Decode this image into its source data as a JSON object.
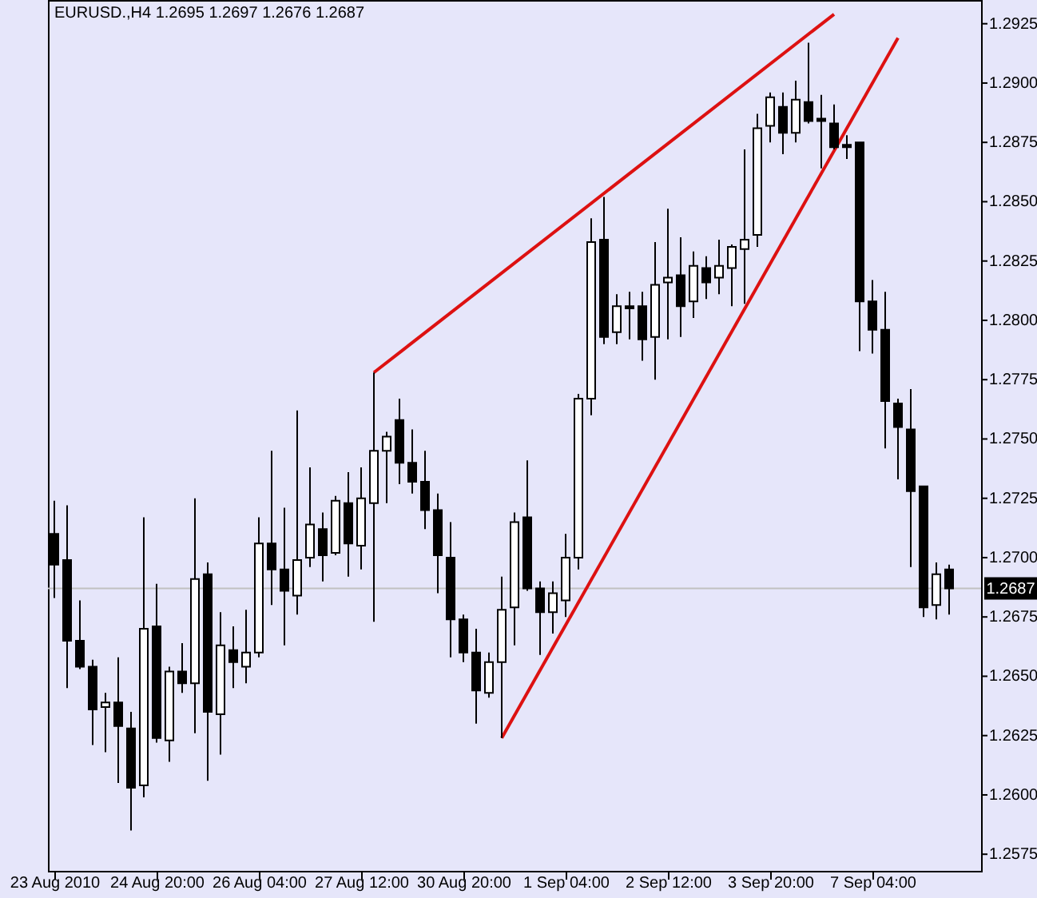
{
  "chart_data": {
    "type": "candlestick",
    "title": "EURUSD.,H4  1.2695 1.2697 1.2676 1.2687",
    "categories": [
      "23 Aug 2010",
      null,
      null,
      null,
      null,
      null,
      null,
      null,
      "24 Aug 20:00",
      null,
      null,
      null,
      null,
      null,
      null,
      null,
      "26 Aug 04:00",
      null,
      null,
      null,
      null,
      null,
      null,
      null,
      "27 Aug 12:00",
      null,
      null,
      null,
      null,
      null,
      null,
      null,
      "30 Aug 20:00",
      null,
      null,
      null,
      null,
      null,
      null,
      null,
      "1 Sep 04:00",
      null,
      null,
      null,
      null,
      null,
      null,
      null,
      "2 Sep 12:00",
      null,
      null,
      null,
      null,
      null,
      null,
      null,
      "3 Sep 20:00",
      null,
      null,
      null,
      null,
      null,
      null,
      null,
      "7 Sep 04:00",
      null,
      null,
      null,
      null,
      null,
      null
    ],
    "ohlc": [
      [
        1.271,
        1.2724,
        1.2683,
        1.2697
      ],
      [
        1.2699,
        1.2722,
        1.2645,
        1.2665
      ],
      [
        1.2665,
        1.2682,
        1.2653,
        1.2654
      ],
      [
        1.2654,
        1.2657,
        1.2621,
        1.2636
      ],
      [
        1.2637,
        1.2643,
        1.2618,
        1.2639
      ],
      [
        1.2639,
        1.2658,
        1.2605,
        1.2629
      ],
      [
        1.2628,
        1.2635,
        1.2585,
        1.2603
      ],
      [
        1.2604,
        1.2717,
        1.2599,
        1.267
      ],
      [
        1.2671,
        1.2689,
        1.2622,
        1.2624
      ],
      [
        1.2623,
        1.2654,
        1.2614,
        1.2652
      ],
      [
        1.2652,
        1.2664,
        1.2643,
        1.2647
      ],
      [
        1.2647,
        1.2725,
        1.2626,
        1.2691
      ],
      [
        1.2693,
        1.2698,
        1.2606,
        1.2635
      ],
      [
        1.2634,
        1.2677,
        1.2617,
        1.2663
      ],
      [
        1.2661,
        1.2671,
        1.2645,
        1.2656
      ],
      [
        1.2654,
        1.2678,
        1.2647,
        1.266
      ],
      [
        1.266,
        1.2717,
        1.2658,
        1.2706
      ],
      [
        1.2706,
        1.2745,
        1.268,
        1.2695
      ],
      [
        1.2695,
        1.2721,
        1.2663,
        1.2686
      ],
      [
        1.2684,
        1.2762,
        1.2676,
        1.2699
      ],
      [
        1.27,
        1.2738,
        1.2696,
        1.2714
      ],
      [
        1.2712,
        1.2719,
        1.269,
        1.2701
      ],
      [
        1.2702,
        1.2726,
        1.2701,
        1.2724
      ],
      [
        1.2723,
        1.2736,
        1.2692,
        1.2706
      ],
      [
        1.2705,
        1.2738,
        1.2695,
        1.2725
      ],
      [
        1.2723,
        1.2778,
        1.2673,
        1.2745
      ],
      [
        1.2745,
        1.2753,
        1.2723,
        1.2751
      ],
      [
        1.2758,
        1.2767,
        1.2731,
        1.274
      ],
      [
        1.274,
        1.2754,
        1.2727,
        1.2732
      ],
      [
        1.2732,
        1.2745,
        1.2712,
        1.272
      ],
      [
        1.272,
        1.2727,
        1.2685,
        1.2701
      ],
      [
        1.27,
        1.2715,
        1.2658,
        1.2674
      ],
      [
        1.2674,
        1.2676,
        1.2656,
        1.266
      ],
      [
        1.266,
        1.267,
        1.263,
        1.2644
      ],
      [
        1.2643,
        1.266,
        1.2641,
        1.2656
      ],
      [
        1.2656,
        1.2692,
        1.2624,
        1.2678
      ],
      [
        1.2679,
        1.2719,
        1.2663,
        1.2715
      ],
      [
        1.2717,
        1.2741,
        1.2686,
        1.2687
      ],
      [
        1.2687,
        1.269,
        1.2659,
        1.2677
      ],
      [
        1.2677,
        1.269,
        1.2668,
        1.2685
      ],
      [
        1.2682,
        1.271,
        1.2675,
        1.27
      ],
      [
        1.27,
        1.2769,
        1.2695,
        1.2767
      ],
      [
        1.2767,
        1.2843,
        1.276,
        1.2833
      ],
      [
        1.2834,
        1.2852,
        1.279,
        1.2793
      ],
      [
        1.2795,
        1.2811,
        1.279,
        1.2806
      ],
      [
        1.2806,
        1.2812,
        1.2792,
        1.2805
      ],
      [
        1.2806,
        1.2812,
        1.2783,
        1.2792
      ],
      [
        1.2793,
        1.2833,
        1.2775,
        1.2815
      ],
      [
        1.2816,
        1.2847,
        1.2792,
        1.2818
      ],
      [
        1.2819,
        1.2835,
        1.2793,
        1.2806
      ],
      [
        1.2808,
        1.2829,
        1.2801,
        1.2823
      ],
      [
        1.2822,
        1.2827,
        1.2809,
        1.2816
      ],
      [
        1.2818,
        1.2834,
        1.2811,
        1.2823
      ],
      [
        1.2822,
        1.2832,
        1.2806,
        1.2831
      ],
      [
        1.283,
        1.2872,
        1.2807,
        1.2834
      ],
      [
        1.2836,
        1.2887,
        1.2831,
        1.2881
      ],
      [
        1.2882,
        1.2896,
        1.2875,
        1.2894
      ],
      [
        1.289,
        1.2896,
        1.287,
        1.2879
      ],
      [
        1.2879,
        1.2901,
        1.2875,
        1.2893
      ],
      [
        1.2892,
        1.2917,
        1.2883,
        1.2884
      ],
      [
        1.2885,
        1.2895,
        1.2864,
        1.2884
      ],
      [
        1.2883,
        1.2891,
        1.2872,
        1.2873
      ],
      [
        1.2874,
        1.2878,
        1.2868,
        1.2873
      ],
      [
        1.2875,
        1.2875,
        1.2787,
        1.2808
      ],
      [
        1.2808,
        1.2817,
        1.2786,
        1.2796
      ],
      [
        1.2796,
        1.2812,
        1.2746,
        1.2766
      ],
      [
        1.2765,
        1.2767,
        1.2733,
        1.2755
      ],
      [
        1.2754,
        1.2771,
        1.2696,
        1.2728
      ],
      [
        1.273,
        1.273,
        1.2675,
        1.2679
      ],
      [
        1.268,
        1.2698,
        1.2674,
        1.2693
      ],
      [
        1.2695,
        1.2697,
        1.2676,
        1.2687
      ]
    ],
    "series": [
      {
        "type": "line",
        "color": "#dd1111",
        "values": [
          null,
          null,
          null,
          null,
          null,
          null,
          null,
          null,
          null,
          null,
          null,
          null,
          null,
          null,
          null,
          null,
          null,
          null,
          null,
          null,
          null,
          null,
          null,
          null,
          null,
          1.2778,
          null,
          null,
          null,
          null,
          null,
          null,
          null,
          null,
          null,
          null,
          null,
          null,
          null,
          null,
          null,
          null,
          null,
          null,
          null,
          null,
          null,
          null,
          null,
          null,
          null,
          null,
          null,
          null,
          null,
          null,
          null,
          null,
          null,
          null,
          null,
          1.2929,
          null,
          null,
          null,
          null,
          null,
          null,
          null,
          null,
          null
        ]
      },
      {
        "type": "line",
        "color": "#dd1111",
        "values": [
          null,
          null,
          null,
          null,
          null,
          null,
          null,
          null,
          null,
          null,
          null,
          null,
          null,
          null,
          null,
          null,
          null,
          null,
          null,
          null,
          null,
          null,
          null,
          null,
          null,
          null,
          null,
          null,
          null,
          null,
          null,
          null,
          null,
          null,
          null,
          1.2624,
          null,
          null,
          null,
          null,
          null,
          null,
          null,
          null,
          null,
          null,
          null,
          null,
          null,
          null,
          null,
          null,
          null,
          null,
          null,
          null,
          null,
          null,
          null,
          null,
          null,
          null,
          null,
          null,
          null,
          null,
          1.2919,
          null,
          null,
          null,
          null
        ]
      }
    ],
    "ylim": [
      1.2568,
      1.2935
    ],
    "yticks": [
      {
        "value": 1.2575,
        "label": "1.2575"
      },
      {
        "value": 1.26,
        "label": "1.2600"
      },
      {
        "value": 1.2625,
        "label": "1.2625"
      },
      {
        "value": 1.265,
        "label": "1.2650"
      },
      {
        "value": 1.2675,
        "label": "1.2675"
      },
      {
        "value": 1.27,
        "label": "1.2700"
      },
      {
        "value": 1.2725,
        "label": "1.2725"
      },
      {
        "value": 1.275,
        "label": "1.2750"
      },
      {
        "value": 1.2775,
        "label": "1.2775"
      },
      {
        "value": 1.28,
        "label": "1.2800"
      },
      {
        "value": 1.2825,
        "label": "1.2825"
      },
      {
        "value": 1.285,
        "label": "1.2850"
      },
      {
        "value": 1.2875,
        "label": "1.2875"
      },
      {
        "value": 1.29,
        "label": "1.2900"
      },
      {
        "value": 1.2925,
        "label": "1.2925"
      }
    ],
    "ref_lines": [
      {
        "axis": "y",
        "value": 1.2687,
        "label": "1.2687",
        "color": "#c0c0c0"
      }
    ],
    "grid": false
  }
}
